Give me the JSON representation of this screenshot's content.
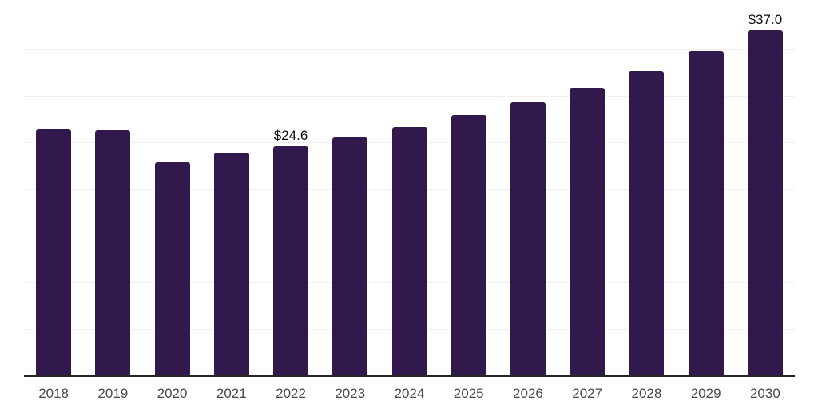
{
  "chart_data": {
    "type": "bar",
    "title": "",
    "xlabel": "",
    "ylabel": "",
    "categories": [
      "2018",
      "2019",
      "2020",
      "2021",
      "2022",
      "2023",
      "2024",
      "2025",
      "2026",
      "2027",
      "2028",
      "2029",
      "2030"
    ],
    "values": [
      26.4,
      26.3,
      22.9,
      23.9,
      24.6,
      25.5,
      26.6,
      27.9,
      29.3,
      30.8,
      32.6,
      34.8,
      37.0
    ],
    "data_labels": [
      {
        "category": "2022",
        "text": "$24.6"
      },
      {
        "category": "2030",
        "text": "$37.0"
      }
    ],
    "ylim": [
      0,
      40
    ],
    "grid_step": 5,
    "grid": true,
    "legend": false,
    "y_axis_ticks_visible": false
  },
  "colors": {
    "bar": "#32194d",
    "axis_line": "#262626",
    "plot_top_line": "#3d3d3d",
    "gridline": "#efefef",
    "tick_label": "#4a4a4a",
    "data_label": "#0d0d0d",
    "background": "#ffffff"
  }
}
